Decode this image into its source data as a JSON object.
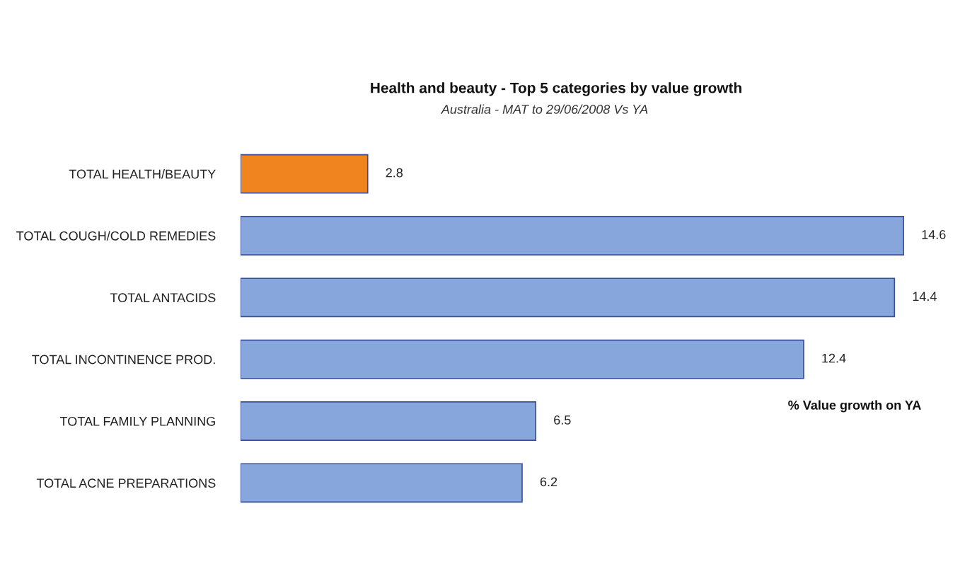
{
  "chart_data": {
    "type": "bar",
    "orientation": "horizontal",
    "title": "Health and beauty - Top 5 categories by value growth",
    "subtitle": "Australia - MAT to 29/06/2008 Vs YA",
    "categories": [
      "TOTAL HEALTH/BEAUTY",
      "TOTAL COUGH/COLD REMEDIES",
      "TOTAL ANTACIDS",
      "TOTAL INCONTINENCE PROD.",
      "TOTAL FAMILY PLANNING",
      "TOTAL ACNE PREPARATIONS"
    ],
    "values": [
      2.8,
      14.6,
      14.4,
      12.4,
      6.5,
      6.2
    ],
    "colors": [
      "#f0841e",
      "#86a6dc",
      "#86a6dc",
      "#86a6dc",
      "#86a6dc",
      "#86a6dc"
    ],
    "data_labels": true,
    "tick_labels": "y",
    "annotations": [
      "% Value growth on YA"
    ]
  }
}
